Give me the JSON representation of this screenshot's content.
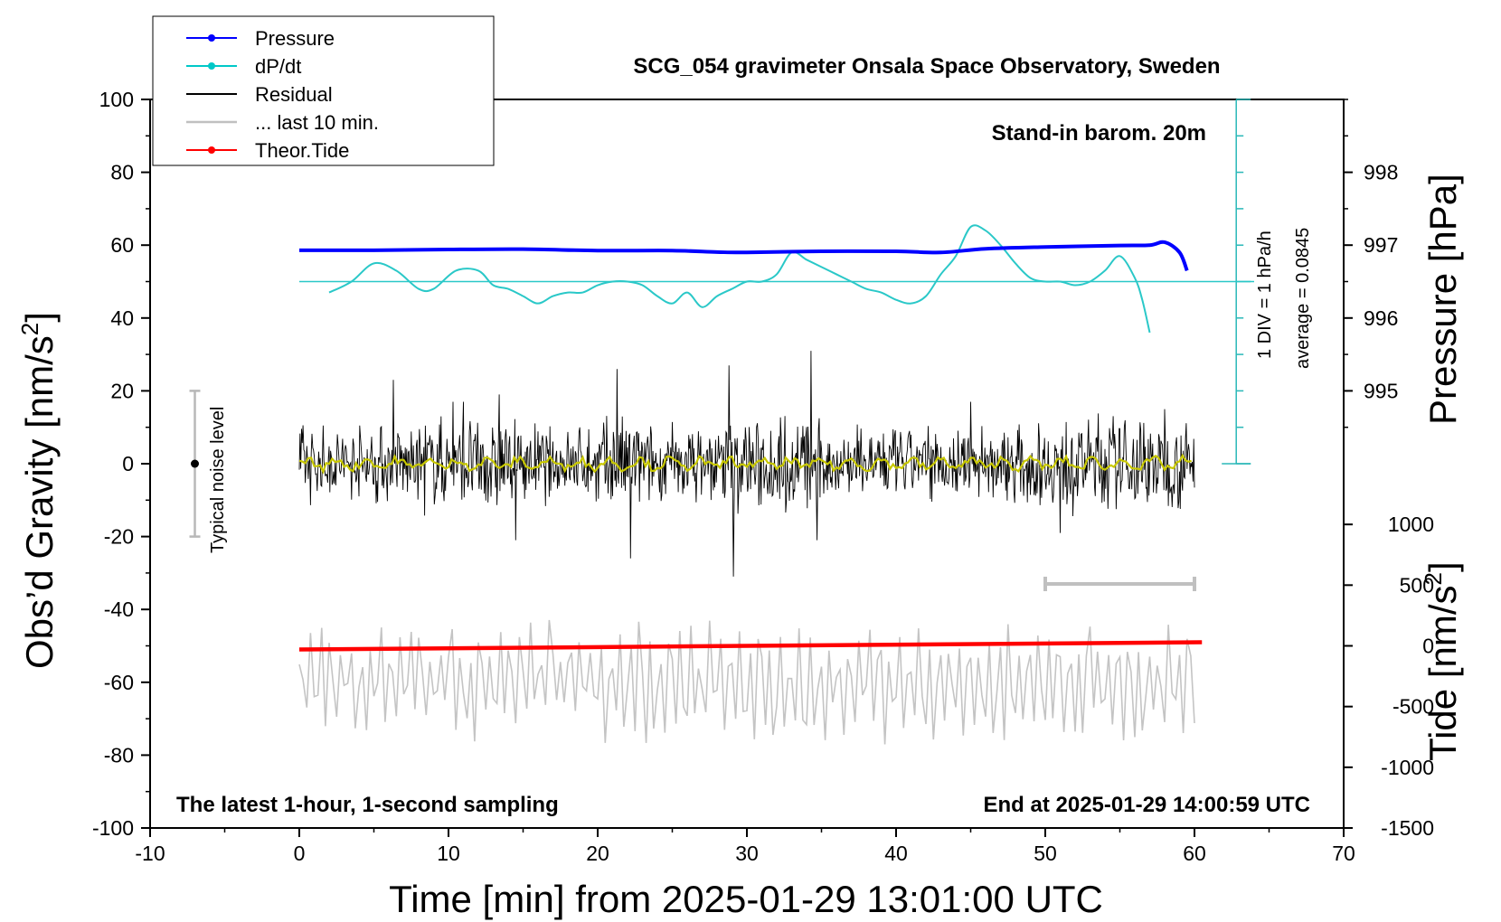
{
  "chart_data": {
    "type": "line",
    "title": "SCG_054 gravimeter Onsala Space Observatory, Sweden",
    "xlabel": "Time [min] from 2025-01-29 13:01:00 UTC",
    "ylabel_main": "Obs’d Gravity [nm/s",
    "ylabel_sup": "2",
    "ylabel_end": "]",
    "ylabel_pressure": "Pressure [hPa]",
    "ylabel_tide": "Tide [nm/s",
    "ylabel_tide_sup": "2",
    "ylabel_tide_end": "]",
    "xlim": [
      -10,
      70
    ],
    "ylim": [
      -100,
      100
    ],
    "x_ticks": [
      "-10",
      "0",
      "10",
      "20",
      "30",
      "40",
      "50",
      "60",
      "70"
    ],
    "y_ticks": [
      "-100",
      "-80",
      "-60",
      "-40",
      "-20",
      "0",
      "20",
      "40",
      "60",
      "80",
      "100"
    ],
    "pressure_ticks": [
      "998",
      "997",
      "996",
      "995"
    ],
    "tide_ticks": [
      "1000",
      "500",
      "0",
      "-500",
      "-1000",
      "-1500"
    ],
    "legend": [
      {
        "label": "Pressure",
        "color": "#0000ff",
        "marker": true
      },
      {
        "label": "dP/dt",
        "color": "#00c8c8",
        "marker": true
      },
      {
        "label": "Residual",
        "color": "#000000",
        "marker": false
      },
      {
        "label": "... last 10 min.",
        "color": "#c0c0c0",
        "marker": false
      },
      {
        "label": "Theor.Tide",
        "color": "#ff0000",
        "marker": true
      }
    ],
    "annotations": {
      "barometer": "Stand-in barom. 20m",
      "scale_div": "1 DIV = 1 hPa/h",
      "scale_avg": "average = 0.0845",
      "noise": "Typical noise level",
      "bottom_left": "The latest 1-hour, 1-second sampling",
      "bottom_right": "End at 2025-01-29 14:00:59 UTC"
    },
    "pressure": {
      "x": [
        0,
        5,
        10,
        15,
        20,
        25,
        28,
        30,
        35,
        40,
        43,
        46,
        50,
        55,
        57,
        58,
        59,
        59.5
      ],
      "y": [
        58.6,
        58.6,
        58.8,
        58.9,
        58.5,
        58.5,
        58.1,
        58,
        58.3,
        58.3,
        58,
        59,
        59.5,
        59.9,
        60,
        60.8,
        58,
        53
      ]
    },
    "dpdt": {
      "x": [
        2,
        3.5,
        5,
        6.5,
        8,
        9,
        10.5,
        12,
        13,
        14,
        15,
        16,
        17,
        18,
        19,
        20,
        21,
        22,
        23,
        24,
        25,
        26,
        27,
        28,
        29,
        30,
        31,
        32,
        33,
        34,
        35,
        36,
        37,
        38,
        39,
        40,
        41,
        42,
        43,
        44,
        45,
        46,
        47,
        48,
        49,
        50,
        51,
        52,
        53,
        54,
        55,
        56,
        56.5,
        57
      ],
      "y": [
        47,
        50,
        55,
        53,
        48,
        48,
        53,
        53,
        49,
        48,
        46,
        44,
        46,
        47,
        47,
        49,
        50,
        50,
        49,
        46,
        44,
        47,
        43,
        46,
        48,
        50,
        50,
        52,
        58,
        56,
        54,
        52,
        50,
        48,
        47,
        45,
        44,
        46,
        52,
        57,
        65,
        64,
        60,
        55,
        51,
        50,
        50,
        49,
        50,
        53,
        57,
        51,
        45,
        36
      ]
    },
    "baseline_dpdt": 50,
    "residual_x_range": [
      0,
      60
    ],
    "residual_envelope": [
      12,
      -12
    ],
    "residual_peaks": [
      {
        "x": 6.3,
        "y": 23
      },
      {
        "x": 10.3,
        "y": 17
      },
      {
        "x": 13.4,
        "y": 19
      },
      {
        "x": 21.3,
        "y": 26
      },
      {
        "x": 22.2,
        "y": -26
      },
      {
        "x": 28.8,
        "y": 27
      },
      {
        "x": 29.1,
        "y": -31
      },
      {
        "x": 34.3,
        "y": 31
      },
      {
        "x": 34.7,
        "y": -21
      },
      {
        "x": 14.5,
        "y": -21
      },
      {
        "x": 11,
        "y": 17
      },
      {
        "x": 51,
        "y": -19
      },
      {
        "x": 45,
        "y": 17
      },
      {
        "x": 58,
        "y": 15
      }
    ],
    "theor_tide": {
      "x": [
        0,
        60.5
      ],
      "y": [
        -51,
        -49
      ]
    },
    "last10_bar": {
      "x": [
        50,
        60
      ],
      "y": -33
    },
    "noise_bar": {
      "x": -7,
      "y": [
        -20,
        20
      ]
    }
  }
}
